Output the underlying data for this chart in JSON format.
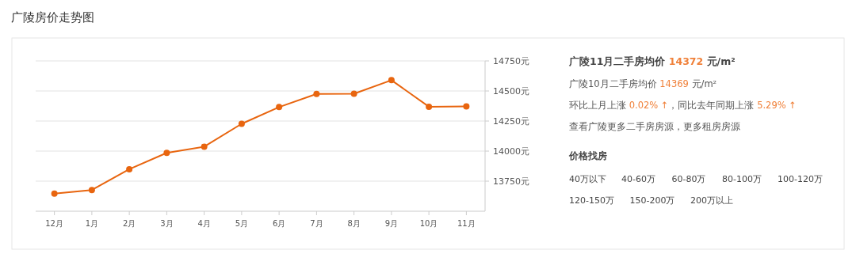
{
  "chart_data": [
    {
      "type": "line",
      "title": "广陵房价走势图",
      "categories": [
        "12月",
        "1月",
        "2月",
        "3月",
        "4月",
        "5月",
        "6月",
        "7月",
        "8月",
        "9月",
        "10月",
        "11月"
      ],
      "series": [
        {
          "color": "#e8650f",
          "values": [
            13646,
            13676,
            13849,
            13985,
            14037,
            14227,
            14366,
            14475,
            14477,
            14590,
            14369,
            14372
          ]
        }
      ],
      "ylim": [
        13500,
        14750
      ],
      "yticks": [
        {
          "value": 13750,
          "label": "13750元"
        },
        {
          "value": 14000,
          "label": "14000元"
        },
        {
          "value": 14250,
          "label": "14250元"
        },
        {
          "value": 14500,
          "label": "14500元"
        },
        {
          "value": 14750,
          "label": "14750元"
        }
      ],
      "grid": "y",
      "marker": "circle",
      "line_style": "solid"
    },
    {
      "type": "other",
      "title": "广陵11月二手房均价 14372 元/m²",
      "annotations": [
        "广陵10月二手房均价 14369 元/m²",
        "环比上月上涨 0.02% ↑，同比去年同期上涨 5.29% ↑",
        "查看广陵更多二手房房源，更多租房房源",
        "价格找房",
        "40万以下",
        "40-60万",
        "60-80万",
        "80-100万",
        "100-120万",
        "120-150万",
        "150-200万",
        "200万以上"
      ]
    }
  ]
}
